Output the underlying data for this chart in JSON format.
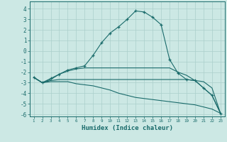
{
  "xlabel": "Humidex (Indice chaleur)",
  "background_color": "#cce8e4",
  "grid_color": "#aacfcb",
  "line_color": "#1a6b6b",
  "xlim": [
    0.5,
    23.5
  ],
  "ylim": [
    -6.2,
    4.7
  ],
  "x": [
    1,
    2,
    3,
    4,
    5,
    6,
    7,
    8,
    9,
    10,
    11,
    12,
    13,
    14,
    15,
    16,
    17,
    18,
    19,
    20,
    21,
    22,
    23
  ],
  "line1": [
    -2.5,
    -3.0,
    -2.6,
    -2.2,
    -1.8,
    -1.6,
    -1.4,
    -0.4,
    0.8,
    1.7,
    2.3,
    3.0,
    3.8,
    3.7,
    3.2,
    2.5,
    -0.8,
    -2.1,
    -2.7,
    -2.8,
    -3.5,
    -4.2,
    -5.9
  ],
  "line2": [
    -2.5,
    -3.0,
    -2.7,
    -2.2,
    -1.9,
    -1.7,
    -1.6,
    -1.6,
    -1.6,
    -1.6,
    -1.6,
    -1.6,
    -1.6,
    -1.6,
    -1.6,
    -1.6,
    -1.6,
    -2.0,
    -2.3,
    -2.8,
    -3.5,
    -4.2,
    -5.9
  ],
  "line3": [
    -2.5,
    -3.0,
    -2.8,
    -2.7,
    -2.7,
    -2.7,
    -2.7,
    -2.7,
    -2.7,
    -2.7,
    -2.7,
    -2.7,
    -2.7,
    -2.7,
    -2.7,
    -2.7,
    -2.7,
    -2.7,
    -2.7,
    -2.8,
    -2.9,
    -3.5,
    -5.9
  ],
  "line4": [
    -2.5,
    -3.0,
    -2.9,
    -2.9,
    -2.9,
    -3.1,
    -3.2,
    -3.3,
    -3.5,
    -3.7,
    -4.0,
    -4.2,
    -4.4,
    -4.5,
    -4.6,
    -4.7,
    -4.8,
    -4.9,
    -5.0,
    -5.1,
    -5.3,
    -5.5,
    -5.9
  ]
}
